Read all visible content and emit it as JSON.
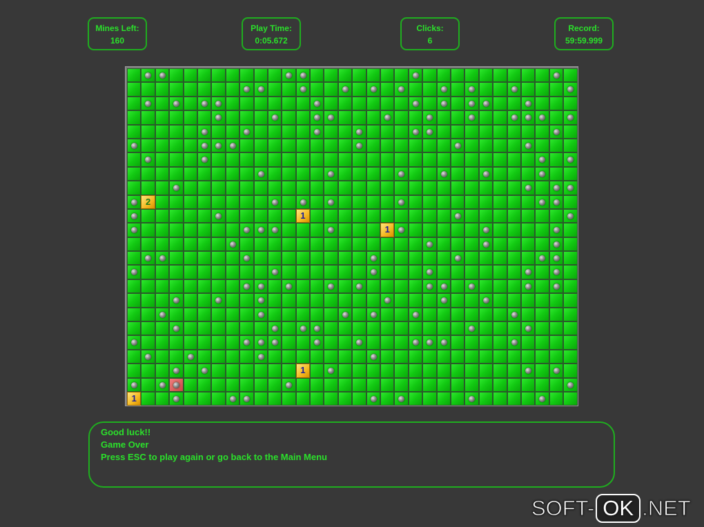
{
  "stats": {
    "mines_left": {
      "label": "Mines Left:",
      "value": "160"
    },
    "play_time": {
      "label": "Play Time:",
      "value": "0:05.672"
    },
    "clicks": {
      "label": "Clicks:",
      "value": "6"
    },
    "record": {
      "label": "Record:",
      "value": "59:59.999"
    }
  },
  "board": {
    "cols": 32,
    "rows": 24,
    "mines": [
      [
        1,
        2,
        11,
        12,
        20,
        30
      ],
      [
        8,
        9,
        12,
        15,
        17,
        19,
        22,
        24,
        27,
        31
      ],
      [
        1,
        3,
        5,
        6,
        13,
        20,
        22,
        24,
        25,
        28
      ],
      [
        6,
        10,
        13,
        14,
        18,
        21,
        24,
        27,
        28,
        29,
        31
      ],
      [
        5,
        8,
        13,
        16,
        20,
        21,
        30
      ],
      [
        0,
        5,
        6,
        7,
        16,
        23,
        28
      ],
      [
        1,
        5,
        29,
        31
      ],
      [
        9,
        14,
        19,
        22,
        25,
        29
      ],
      [
        3,
        28,
        30,
        31
      ],
      [
        0,
        10,
        12,
        14,
        19,
        29,
        30
      ],
      [
        0,
        6,
        23,
        31
      ],
      [
        0,
        8,
        9,
        10,
        14,
        19,
        25,
        30
      ],
      [
        7,
        21,
        25,
        30
      ],
      [
        1,
        2,
        8,
        17,
        23,
        29,
        30
      ],
      [
        0,
        10,
        17,
        21,
        28,
        30
      ],
      [
        8,
        9,
        11,
        14,
        16,
        21,
        22,
        24,
        28,
        30
      ],
      [
        3,
        6,
        9,
        18,
        22,
        25
      ],
      [
        2,
        9,
        15,
        17,
        20,
        27
      ],
      [
        3,
        10,
        12,
        13,
        24,
        28
      ],
      [
        0,
        8,
        9,
        10,
        13,
        16,
        20,
        21,
        22,
        27
      ],
      [
        1,
        4,
        9,
        17
      ],
      [
        3,
        5,
        14,
        28,
        30
      ],
      [
        0,
        2,
        11,
        31
      ],
      [
        3,
        7,
        8,
        17,
        19,
        24,
        29
      ]
    ],
    "revealed": [
      {
        "row": 9,
        "col": 1,
        "value": "2"
      },
      {
        "row": 10,
        "col": 12,
        "value": "1"
      },
      {
        "row": 11,
        "col": 18,
        "value": "1"
      },
      {
        "row": 21,
        "col": 12,
        "value": "1"
      },
      {
        "row": 23,
        "col": 0,
        "value": "1"
      }
    ],
    "exploded": {
      "row": 22,
      "col": 3
    }
  },
  "messages": [
    "Good luck!!",
    "Game Over",
    "Press ESC to play again or go back to the Main Menu"
  ],
  "watermark": {
    "left": "SOFT-",
    "box": "OK",
    "right": ".NET"
  },
  "colors": {
    "accent": "#2be02b",
    "cell": "#12c912",
    "background": "#383838"
  }
}
